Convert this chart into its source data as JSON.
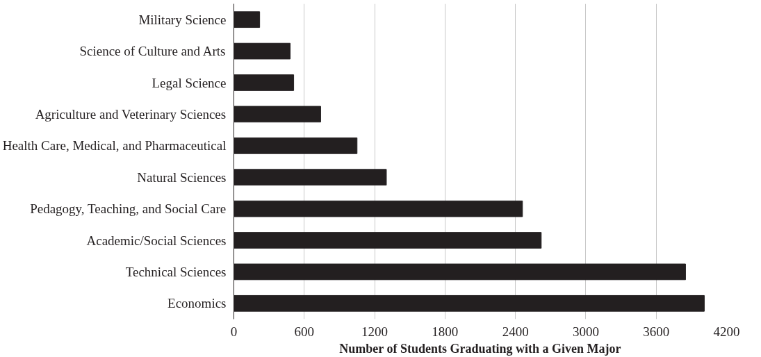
{
  "chart_data": {
    "type": "bar",
    "orientation": "horizontal",
    "xlabel": "Number of Students Graduating with a Given Major",
    "categories": [
      "Military Science",
      "Science of Culture and Arts",
      "Legal Science",
      "Agriculture and Veterinary Sciences",
      "Health Care, Medical, and Pharmaceutical",
      "Natural Sciences",
      "Pedagogy, Teaching, and Social Care",
      "Academic/Social Sciences",
      "Technical Sciences",
      "Economics"
    ],
    "values": [
      220,
      480,
      510,
      740,
      1050,
      1300,
      2460,
      2620,
      3850,
      4010
    ],
    "color": "#231f20",
    "xlim": [
      0,
      4200
    ],
    "xticks": [
      0,
      600,
      1200,
      1800,
      2400,
      3000,
      3600,
      4200
    ],
    "grid": "x"
  }
}
